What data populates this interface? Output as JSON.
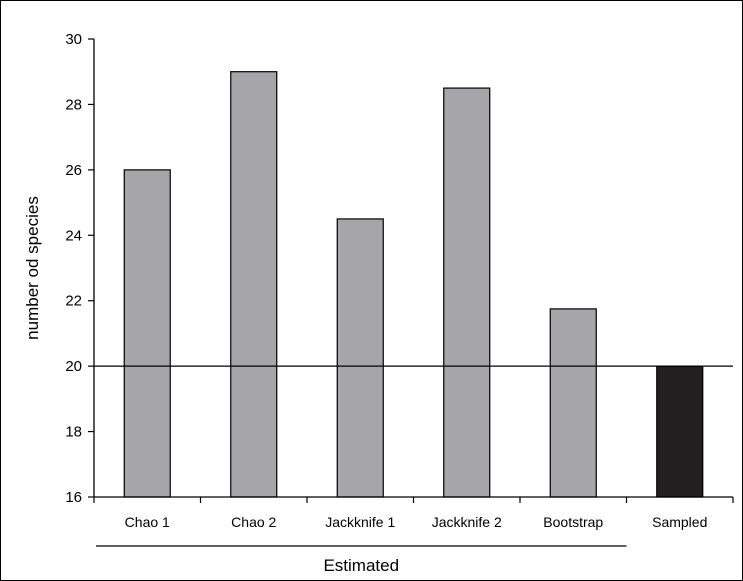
{
  "chart_data": {
    "type": "bar",
    "title": "",
    "ylabel": "number od species",
    "xlabel": "",
    "group_label": "Estimated",
    "ylim": [
      16,
      30
    ],
    "yticks": [
      16,
      18,
      20,
      22,
      24,
      26,
      28,
      30
    ],
    "reference_line": 20,
    "categories": [
      "Chao 1",
      "Chao 2",
      "Jackknife 1",
      "Jackknife 2",
      "Bootstrap",
      "Sampled"
    ],
    "values": [
      26,
      29,
      24.5,
      28.5,
      21.75,
      20
    ],
    "bar_colors": [
      "#a6a6a9",
      "#a6a6a9",
      "#a6a6a9",
      "#a6a6a9",
      "#a6a6a9",
      "#231f20"
    ],
    "grid": false,
    "legend": "none"
  }
}
